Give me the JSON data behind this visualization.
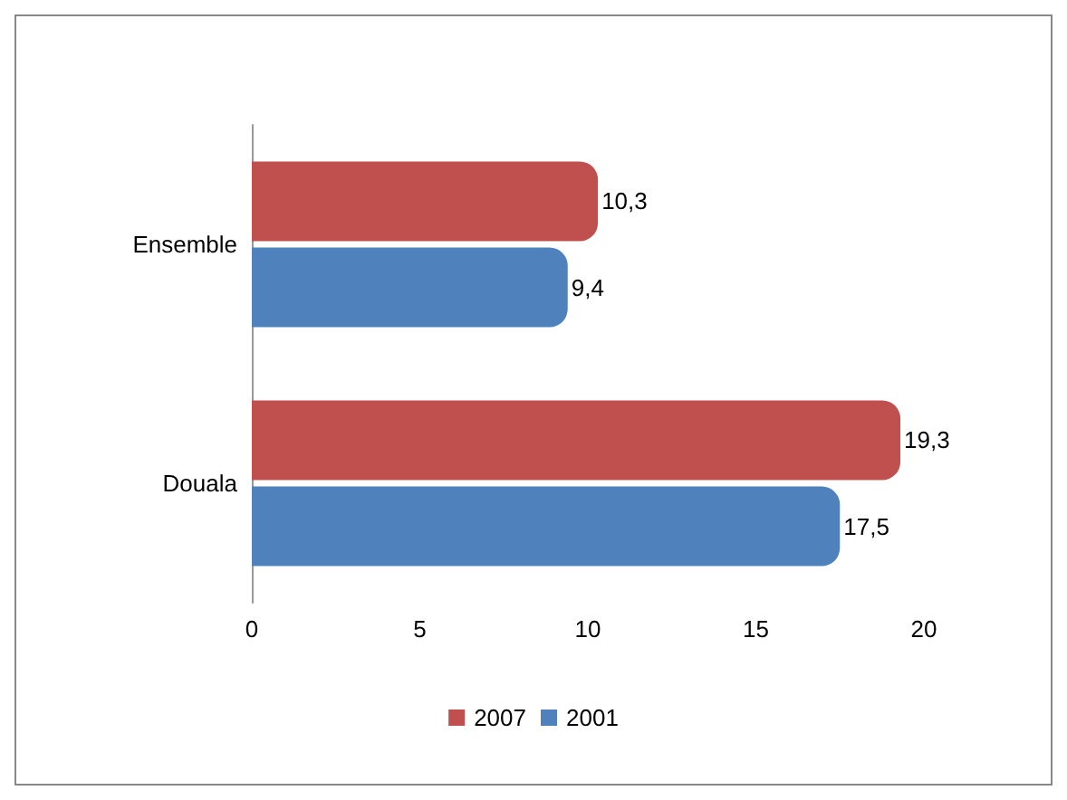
{
  "chart_data": {
    "type": "bar",
    "orientation": "horizontal",
    "categories": [
      "Ensemble",
      "Douala"
    ],
    "series": [
      {
        "name": "2007",
        "color": "#c0504d",
        "values": [
          10.3,
          19.3
        ],
        "value_labels": [
          "10,3",
          "19,3"
        ]
      },
      {
        "name": "2001",
        "color": "#4f81bd",
        "values": [
          9.4,
          17.5
        ],
        "value_labels": [
          "9,4",
          "17,5"
        ]
      }
    ],
    "xlim": [
      0,
      20
    ],
    "xticks": [
      0,
      5,
      10,
      15,
      20
    ],
    "grid": false,
    "legend": "bottom"
  }
}
